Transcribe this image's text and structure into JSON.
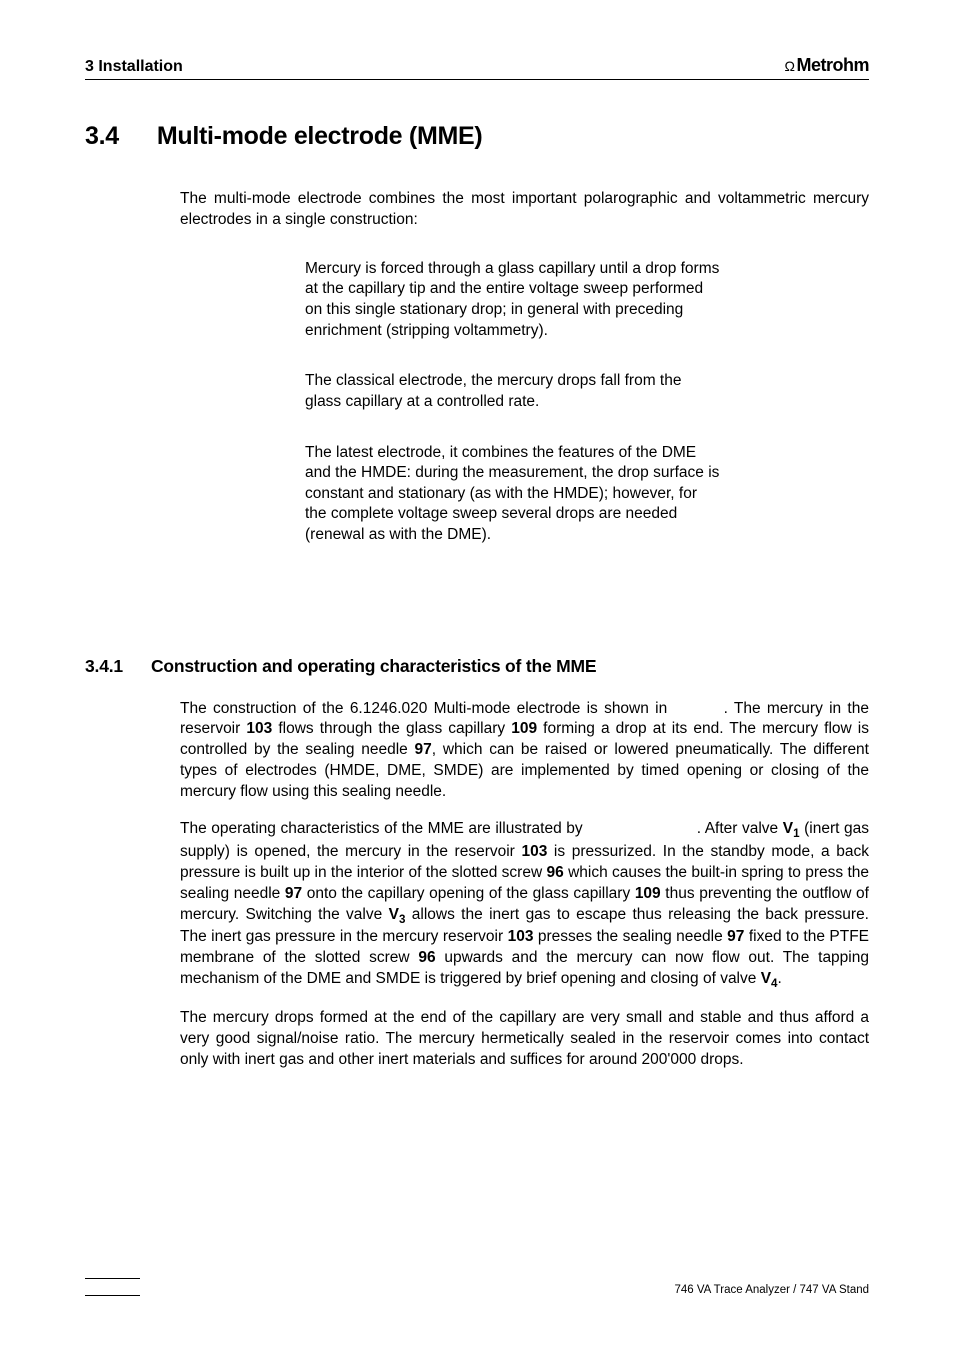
{
  "header": {
    "chapter": "3  Installation",
    "brand_prefix": "Ω",
    "brand": "Metrohm"
  },
  "section": {
    "number": "3.4",
    "title": "Multi-mode electrode (MME)",
    "intro": "The multi-mode electrode combines the most important polarographic and voltammetric mercury electrodes in a single construction:"
  },
  "definitions": [
    "Mercury is forced through a glass capillary until a drop forms at the capillary tip and the entire voltage sweep performed on this single stationary drop; in general with preceding enrichment (stripping voltammetry).",
    "The classical electrode, the mercury drops fall from the glass capillary at a controlled rate.",
    "The latest electrode, it combines the features of the DME and the HMDE: during the measurement, the drop surface is constant and stationary (as with the HMDE); however, for the complete voltage sweep several drops are needed (renewal as with the DME)."
  ],
  "subsection": {
    "number": "3.4.1",
    "title": "Construction and operating characteristics of the MME"
  },
  "paragraphs": {
    "p1_a": "The construction of the 6.1246.020 Multi-mode electrode is shown in ",
    "p1_b": ". The mercury in the reservoir ",
    "r103a": "103",
    "p1_c": " flows through the glass capillary ",
    "r109a": "109",
    "p1_d": " forming a drop at its end. The mercury flow is controlled by the sealing needle ",
    "r97a": "97",
    "p1_e": ", which can be raised or lowered pneumatically. The different types of electrodes (HMDE, DME, SMDE) are implemented by timed opening or closing of the mercury flow using this sealing needle.",
    "p2_a": "The operating characteristics of the MME are illustrated by ",
    "p2_b": ". After valve ",
    "v1": "V",
    "v1s": "1",
    "p2_c": " (inert gas supply) is opened, the mercury in the reservoir ",
    "r103b": "103",
    "p2_d": " is pressurized. In the standby mode, a back pressure is built up in the interior of the slotted screw ",
    "r96a": "96",
    "p2_e": " which causes the built-in spring to press the sealing needle ",
    "r97b": "97",
    "p2_f": " onto the capillary opening of the glass capillary ",
    "r109b": "109",
    "p2_g": " thus preventing the outflow of mercury. Switching the valve ",
    "v3": "V",
    "v3s": "3",
    "p2_h": " allows the inert gas to escape thus releasing the back pressure. The inert gas pressure in the mercury reservoir ",
    "r103c": "103",
    "p2_i": " presses the sealing needle ",
    "r97c": "97",
    "p2_j": " fixed to the PTFE membrane of the slotted screw ",
    "r96b": "96",
    "p2_k": " upwards and the mercury can now flow out. The tapping mechanism of the DME and SMDE is triggered by brief opening and closing of valve ",
    "v4": "V",
    "v4s": "4",
    "p2_l": ".",
    "p3": "The mercury drops formed at the end of the capillary are very small and stable and thus afford a very good signal/noise ratio. The mercury hermetically sealed in the reservoir comes into contact only with inert gas and other inert materials and suffices for around 200'000 drops."
  },
  "footer": {
    "right": "746 VA Trace Analyzer / 747 VA Stand"
  }
}
